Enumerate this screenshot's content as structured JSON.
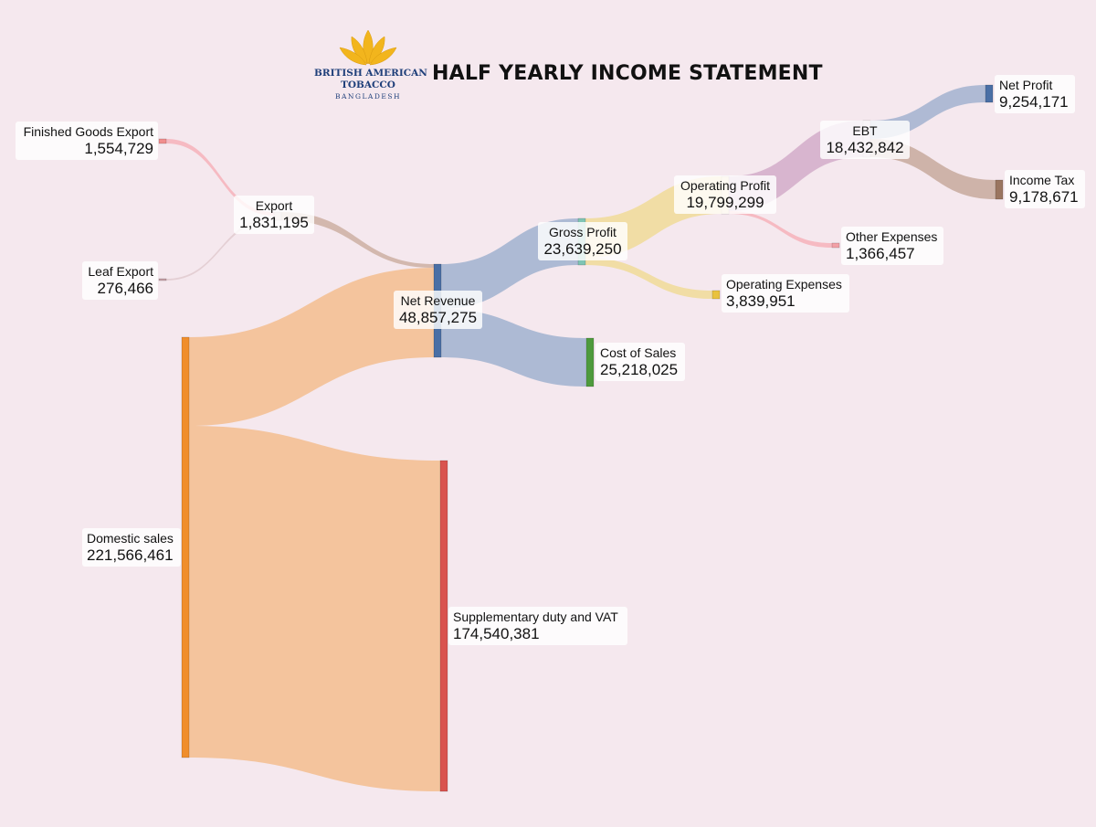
{
  "title": "HALF YEARLY INCOME STATEMENT",
  "logo": {
    "line1": "BRITISH AMERICAN",
    "line2": "TOBACCO",
    "line3": "BANGLADESH",
    "colors": {
      "leaf": "#f2b51d",
      "text": "#1f3f7a"
    }
  },
  "chart_data": {
    "type": "sankey",
    "nodes": [
      {
        "id": "fge",
        "label": "Finished Goods Export",
        "value": "1,554,729",
        "color": "#f08d8d"
      },
      {
        "id": "leaf",
        "label": "Leaf Export",
        "value": "276,466",
        "color": "#c9a2a8"
      },
      {
        "id": "export",
        "label": "Export",
        "value": "1,831,195",
        "color": "#b48d73"
      },
      {
        "id": "domestic",
        "label": "Domestic sales",
        "value": "221,566,461",
        "color": "#f08e2c"
      },
      {
        "id": "netrev",
        "label": "Net Revenue",
        "value": "48,857,275",
        "color": "#4a6fa5"
      },
      {
        "id": "sdvat",
        "label": "Supplementary duty and VAT",
        "value": "174,540,381",
        "color": "#d9534f"
      },
      {
        "id": "gp",
        "label": "Gross Profit",
        "value": "23,639,250",
        "color": "#7fc4b4"
      },
      {
        "id": "cos",
        "label": "Cost of Sales",
        "value": "25,218,025",
        "color": "#4e9a3c"
      },
      {
        "id": "op",
        "label": "Operating Profit",
        "value": "19,799,299",
        "color": "#e9c84d"
      },
      {
        "id": "opex",
        "label": "Operating Expenses",
        "value": "3,839,951",
        "color": "#e9c23e"
      },
      {
        "id": "ebt",
        "label": "EBT",
        "value": "18,432,842",
        "color": "#b482a8"
      },
      {
        "id": "otherexp",
        "label": "Other Expenses",
        "value": "1,366,457",
        "color": "#f2a0a6"
      },
      {
        "id": "np",
        "label": "Net Profit",
        "value": "9,254,171",
        "color": "#4a6fa5"
      },
      {
        "id": "tax",
        "label": "Income Tax",
        "value": "9,178,671",
        "color": "#9a7560"
      }
    ],
    "links": [
      {
        "source": "fge",
        "target": "export",
        "value": 1554729,
        "color": "#f6b7bf"
      },
      {
        "source": "leaf",
        "target": "export",
        "value": 276466,
        "color": "#e3cdd2"
      },
      {
        "source": "export",
        "target": "netrev",
        "value": 1831195,
        "color": "#d1b5aa"
      },
      {
        "source": "domestic",
        "target": "netrev",
        "value": 47026080,
        "color": "#f3c298"
      },
      {
        "source": "domestic",
        "target": "sdvat",
        "value": 174540381,
        "color": "#f3c298"
      },
      {
        "source": "netrev",
        "target": "gp",
        "value": 23639250,
        "color": "#a9b7d2"
      },
      {
        "source": "netrev",
        "target": "cos",
        "value": 25218025,
        "color": "#a9b7d2"
      },
      {
        "source": "gp",
        "target": "op",
        "value": 19799299,
        "color": "#f0dca0"
      },
      {
        "source": "gp",
        "target": "opex",
        "value": 3839951,
        "color": "#f0dca0"
      },
      {
        "source": "op",
        "target": "ebt",
        "value": 18432842,
        "color": "#d6b2cc"
      },
      {
        "source": "op",
        "target": "otherexp",
        "value": 1366457,
        "color": "#f6b7bf"
      },
      {
        "source": "ebt",
        "target": "np",
        "value": 9254171,
        "color": "#abb7d2"
      },
      {
        "source": "ebt",
        "target": "tax",
        "value": 9178671,
        "color": "#cbb0a4"
      }
    ]
  }
}
